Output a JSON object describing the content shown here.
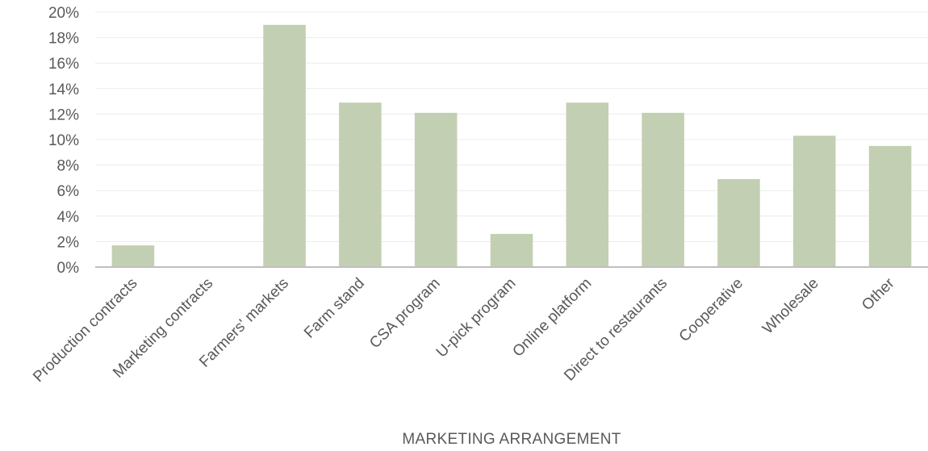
{
  "chart_data": {
    "type": "bar",
    "categories": [
      "Production contracts",
      "Marketing contracts",
      "Farmers' markets",
      "Farm stand",
      "CSA program",
      "U-pick program",
      "Online platform",
      "Direct to restaurants",
      "Cooperative",
      "Wholesale",
      "Other"
    ],
    "values": [
      1.7,
      0,
      19.0,
      12.9,
      12.1,
      2.6,
      12.9,
      12.1,
      6.9,
      10.3,
      9.5
    ],
    "y_ticks": [
      "0%",
      "2%",
      "4%",
      "6%",
      "8%",
      "10%",
      "12%",
      "14%",
      "16%",
      "18%",
      "20%"
    ],
    "ylim": [
      0,
      20
    ],
    "xlabel": "MARKETING ARRANGEMENT",
    "ylabel": "",
    "title": "",
    "grid": true,
    "bar_color": "#c3cfb2",
    "grid_color": "#ececec",
    "axis_color": "#bfbfbf",
    "text_color": "#595959"
  }
}
